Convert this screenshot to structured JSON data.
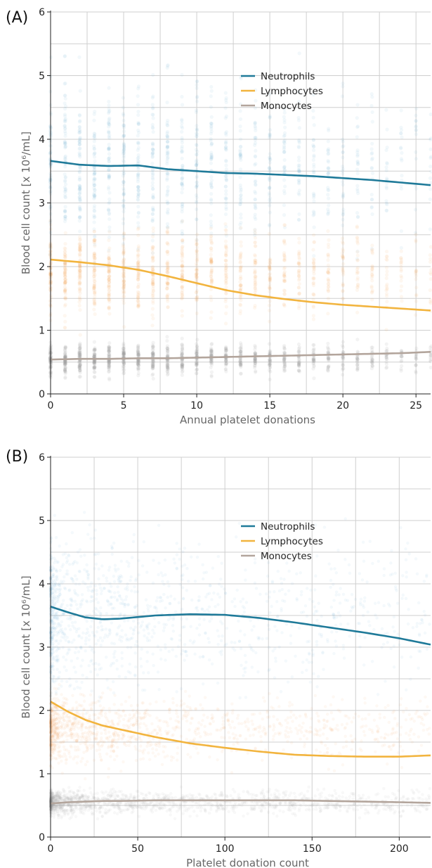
{
  "chart_data": [
    {
      "panel_label": "(A)",
      "type": "scatter",
      "xlabel": "Annual platelet donations",
      "ylabel": "Blood cell count [x 10⁶/mL]",
      "xlim": [
        0,
        26
      ],
      "ylim": [
        0,
        6
      ],
      "xticks": [
        0,
        5,
        10,
        15,
        20,
        25
      ],
      "yticks": [
        0,
        1,
        2,
        3,
        4,
        5,
        6
      ],
      "grid": true,
      "legend_position": "upper-right",
      "series": [
        {
          "name": "Neutrophils",
          "color": "#1f7a99",
          "scatter_color": "#6aaed6",
          "trend_x": [
            0,
            2,
            4,
            6,
            8,
            10,
            12,
            14,
            16,
            18,
            20,
            22,
            24,
            26
          ],
          "trend_y": [
            3.66,
            3.6,
            3.58,
            3.59,
            3.53,
            3.5,
            3.47,
            3.46,
            3.44,
            3.42,
            3.39,
            3.36,
            3.32,
            3.28
          ],
          "scatter_center": 3.6,
          "scatter_spread": 1.3
        },
        {
          "name": "Lymphocytes",
          "color": "#f2b43e",
          "scatter_color": "#f5a25a",
          "trend_x": [
            0,
            2,
            4,
            6,
            8,
            10,
            12,
            14,
            16,
            18,
            20,
            22,
            24,
            26
          ],
          "trend_y": [
            2.11,
            2.07,
            2.02,
            1.95,
            1.85,
            1.74,
            1.63,
            1.55,
            1.49,
            1.44,
            1.4,
            1.37,
            1.34,
            1.31
          ],
          "scatter_center": 1.9,
          "scatter_spread": 0.7
        },
        {
          "name": "Monocytes",
          "color": "#b3a59c",
          "scatter_color": "#9a9a9a",
          "trend_x": [
            0,
            2,
            4,
            6,
            8,
            10,
            12,
            14,
            16,
            18,
            20,
            22,
            24,
            26
          ],
          "trend_y": [
            0.54,
            0.55,
            0.55,
            0.56,
            0.56,
            0.57,
            0.58,
            0.59,
            0.6,
            0.61,
            0.62,
            0.63,
            0.64,
            0.66
          ],
          "scatter_center": 0.55,
          "scatter_spread": 0.25
        }
      ]
    },
    {
      "panel_label": "(B)",
      "type": "scatter",
      "xlabel": "Platelet donation count",
      "ylabel": "Blood cell count [x 10⁶/mL]",
      "xlim": [
        0,
        218
      ],
      "ylim": [
        0,
        6
      ],
      "xticks": [
        0,
        50,
        100,
        150,
        200
      ],
      "yticks": [
        0,
        1,
        2,
        3,
        4,
        5,
        6
      ],
      "grid": true,
      "legend_position": "upper-right",
      "series": [
        {
          "name": "Neutrophils",
          "color": "#1f7a99",
          "scatter_color": "#6aaed6",
          "trend_x": [
            0,
            10,
            20,
            30,
            40,
            60,
            80,
            100,
            120,
            140,
            160,
            180,
            200,
            218
          ],
          "trend_y": [
            3.64,
            3.55,
            3.47,
            3.44,
            3.45,
            3.5,
            3.52,
            3.51,
            3.46,
            3.39,
            3.31,
            3.23,
            3.14,
            3.04
          ],
          "scatter_center": 3.5,
          "scatter_spread": 1.2
        },
        {
          "name": "Lymphocytes",
          "color": "#f2b43e",
          "scatter_color": "#f5a25a",
          "trend_x": [
            0,
            10,
            20,
            30,
            40,
            60,
            80,
            100,
            120,
            140,
            160,
            180,
            200,
            218
          ],
          "trend_y": [
            2.14,
            1.98,
            1.85,
            1.76,
            1.7,
            1.58,
            1.48,
            1.41,
            1.35,
            1.3,
            1.28,
            1.27,
            1.27,
            1.29
          ],
          "scatter_center": 1.7,
          "scatter_spread": 0.55
        },
        {
          "name": "Monocytes",
          "color": "#b3a59c",
          "scatter_color": "#9a9a9a",
          "trend_x": [
            0,
            10,
            20,
            30,
            40,
            60,
            80,
            100,
            120,
            140,
            160,
            180,
            200,
            218
          ],
          "trend_y": [
            0.53,
            0.55,
            0.56,
            0.57,
            0.57,
            0.58,
            0.58,
            0.58,
            0.58,
            0.58,
            0.57,
            0.56,
            0.55,
            0.54
          ],
          "scatter_center": 0.55,
          "scatter_spread": 0.2
        }
      ]
    }
  ]
}
